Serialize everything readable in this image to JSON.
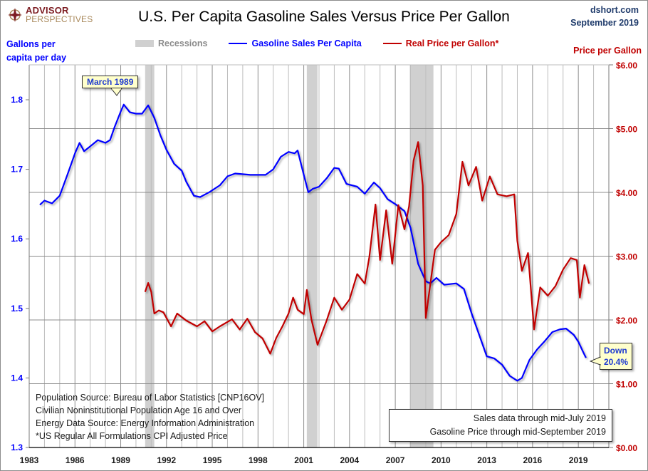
{
  "header": {
    "logo_top": "ADVISOR",
    "logo_bottom": "PERSPECTIVES",
    "title": "U.S. Per Capita Gasoline Sales Versus Price Per Gallon",
    "site": "dshort.com",
    "date": "September 2019"
  },
  "colors": {
    "sales": "#0000ff",
    "price": "#c00000",
    "recession": "#d0d0d0",
    "grid": "#a0a0a0"
  },
  "notes": {
    "sources": [
      "Population Source: Bureau of Labor Statistics [CNP16OV]",
      "Civilian Noninstitutional Population  Age 16 and Over",
      "Energy Data Source: Energy Information Administration",
      "*US Regular All Formulations CPI Adjusted Price"
    ],
    "coverage": [
      "Sales data through mid-July 2019",
      "Gasoline Price through mid-September 2019"
    ]
  },
  "callouts": {
    "peak": "March 1989",
    "down_line1": "Down",
    "down_line2": "20.4%"
  },
  "chart_data": {
    "type": "line",
    "title": "U.S. Per Capita Gasoline Sales Versus Price Per Gallon",
    "xlabel": "",
    "ylabel_left": "Gallons per capita per day",
    "ylabel_right": "Price per Gallon",
    "ylabel_left_lines": [
      "Gallons per",
      "capita per day"
    ],
    "x_range": [
      1983,
      2021
    ],
    "x_ticks": [
      "1983",
      "1986",
      "1989",
      "1992",
      "1995",
      "1998",
      "2001",
      "2004",
      "2007",
      "2010",
      "2013",
      "2016",
      "2019"
    ],
    "x_tick_values": [
      1983,
      1986,
      1989,
      1992,
      1995,
      1998,
      2001,
      2004,
      2007,
      2010,
      2013,
      2016,
      2019
    ],
    "ylim_left": [
      1.3,
      1.85
    ],
    "y_ticks_left": [
      1.3,
      1.4,
      1.5,
      1.6,
      1.7,
      1.8
    ],
    "y_tick_labels_left": [
      "1.3",
      "1.4",
      "1.5",
      "1.6",
      "1.7",
      "1.8"
    ],
    "ylim_right": [
      0,
      6
    ],
    "y_ticks_right": [
      0,
      1,
      2,
      3,
      4,
      5,
      6
    ],
    "y_tick_labels_right": [
      "$0.00",
      "$1.00",
      "$2.00",
      "$3.00",
      "$4.00",
      "$5.00",
      "$6.00"
    ],
    "grid": true,
    "legend": [
      "Recessions",
      "Gasoline Sales Per Capita",
      "Real Price per Gallon*"
    ],
    "legend_position": "top",
    "recessions": [
      [
        1990.6,
        1991.2
      ],
      [
        2001.2,
        2001.9
      ],
      [
        2007.95,
        2009.5
      ]
    ],
    "series": [
      {
        "name": "Gasoline Sales Per Capita",
        "axis": "left",
        "x": [
          1983.7,
          1984.0,
          1984.5,
          1985.0,
          1985.5,
          1986.0,
          1986.3,
          1986.6,
          1987.0,
          1987.5,
          1988.0,
          1988.3,
          1988.6,
          1989.0,
          1989.2,
          1989.6,
          1990.0,
          1990.4,
          1990.8,
          1991.2,
          1991.6,
          1992.0,
          1992.5,
          1993.0,
          1993.3,
          1993.8,
          1994.2,
          1994.8,
          1995.5,
          1996.0,
          1996.5,
          1997.5,
          1998.5,
          1999.0,
          1999.5,
          2000.0,
          2000.4,
          2000.6,
          2001.0,
          2001.3,
          2001.6,
          2002.0,
          2002.5,
          2003.0,
          2003.3,
          2003.8,
          2004.5,
          2005.0,
          2005.6,
          2006.0,
          2006.5,
          2007.0,
          2007.6,
          2008.0,
          2008.5,
          2009.0,
          2009.3,
          2009.7,
          2010.2,
          2011.0,
          2011.5,
          2012.0,
          2012.5,
          2013.0,
          2013.5,
          2014.0,
          2014.5,
          2015.0,
          2015.3,
          2015.8,
          2016.3,
          2016.8,
          2017.3,
          2017.8,
          2018.2,
          2018.7,
          2019.0,
          2019.3,
          2019.5
        ],
        "values": [
          1.649,
          1.655,
          1.651,
          1.662,
          1.692,
          1.723,
          1.738,
          1.726,
          1.733,
          1.742,
          1.738,
          1.742,
          1.761,
          1.783,
          1.793,
          1.782,
          1.78,
          1.78,
          1.792,
          1.774,
          1.749,
          1.728,
          1.708,
          1.698,
          1.682,
          1.662,
          1.66,
          1.667,
          1.677,
          1.69,
          1.694,
          1.692,
          1.692,
          1.7,
          1.718,
          1.725,
          1.723,
          1.727,
          1.692,
          1.667,
          1.672,
          1.675,
          1.687,
          1.702,
          1.701,
          1.679,
          1.675,
          1.665,
          1.681,
          1.673,
          1.657,
          1.65,
          1.64,
          1.616,
          1.564,
          1.539,
          1.536,
          1.544,
          1.534,
          1.536,
          1.528,
          1.493,
          1.462,
          1.431,
          1.428,
          1.419,
          1.403,
          1.396,
          1.4,
          1.426,
          1.441,
          1.453,
          1.466,
          1.47,
          1.471,
          1.462,
          1.452,
          1.438,
          1.429
        ]
      },
      {
        "name": "Real Price per Gallon*",
        "axis": "right",
        "x": [
          1990.6,
          1990.8,
          1991.0,
          1991.2,
          1991.5,
          1991.8,
          1992.3,
          1992.7,
          1993.3,
          1994.0,
          1994.5,
          1995.0,
          1995.5,
          1996.3,
          1996.8,
          1997.3,
          1997.8,
          1998.3,
          1998.8,
          1999.2,
          1999.6,
          2000.0,
          2000.3,
          2000.6,
          2001.0,
          2001.2,
          2001.5,
          2001.9,
          2002.5,
          2003.0,
          2003.5,
          2004.0,
          2004.5,
          2005.0,
          2005.3,
          2005.7,
          2006.0,
          2006.4,
          2006.8,
          2007.2,
          2007.6,
          2007.9,
          2008.2,
          2008.5,
          2008.8,
          2009.0,
          2009.2,
          2009.6,
          2010.0,
          2010.5,
          2011.0,
          2011.4,
          2011.8,
          2012.3,
          2012.7,
          2013.2,
          2013.7,
          2014.3,
          2014.8,
          2015.0,
          2015.3,
          2015.7,
          2016.1,
          2016.5,
          2017.0,
          2017.5,
          2018.0,
          2018.5,
          2018.9,
          2019.1,
          2019.4,
          2019.7
        ],
        "values": [
          2.44,
          2.58,
          2.44,
          2.1,
          2.15,
          2.12,
          1.9,
          2.1,
          1.99,
          1.9,
          1.98,
          1.82,
          1.9,
          2.01,
          1.85,
          2.02,
          1.81,
          1.71,
          1.47,
          1.72,
          1.9,
          2.1,
          2.35,
          2.16,
          2.09,
          2.47,
          2.01,
          1.61,
          1.99,
          2.35,
          2.16,
          2.32,
          2.72,
          2.57,
          2.99,
          3.81,
          2.94,
          3.72,
          2.88,
          3.8,
          3.42,
          3.78,
          4.5,
          4.79,
          4.11,
          2.03,
          2.39,
          3.1,
          3.22,
          3.33,
          3.66,
          4.48,
          4.11,
          4.4,
          3.87,
          4.25,
          3.97,
          3.94,
          3.97,
          3.24,
          2.77,
          3.05,
          1.85,
          2.51,
          2.38,
          2.53,
          2.79,
          2.97,
          2.94,
          2.35,
          2.86,
          2.57
        ]
      }
    ]
  }
}
